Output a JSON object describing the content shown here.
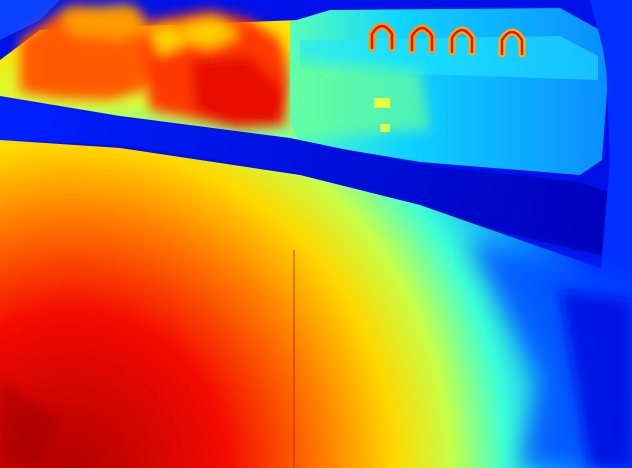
{
  "image": {
    "kind": "depth-map",
    "colormap": "jet",
    "colors": {
      "far_dark_blue": "#00009a",
      "far_blue": "#0008e0",
      "blue": "#0048ff",
      "light_blue": "#0a9cff",
      "cyan": "#18d8ff",
      "aqua": "#44ffd0",
      "green_yellow": "#b8ff50",
      "yellow": "#fff000",
      "orange": "#ff9800",
      "red_orange": "#ff4a00",
      "red": "#e80000",
      "dark_red": "#9a0000"
    }
  }
}
